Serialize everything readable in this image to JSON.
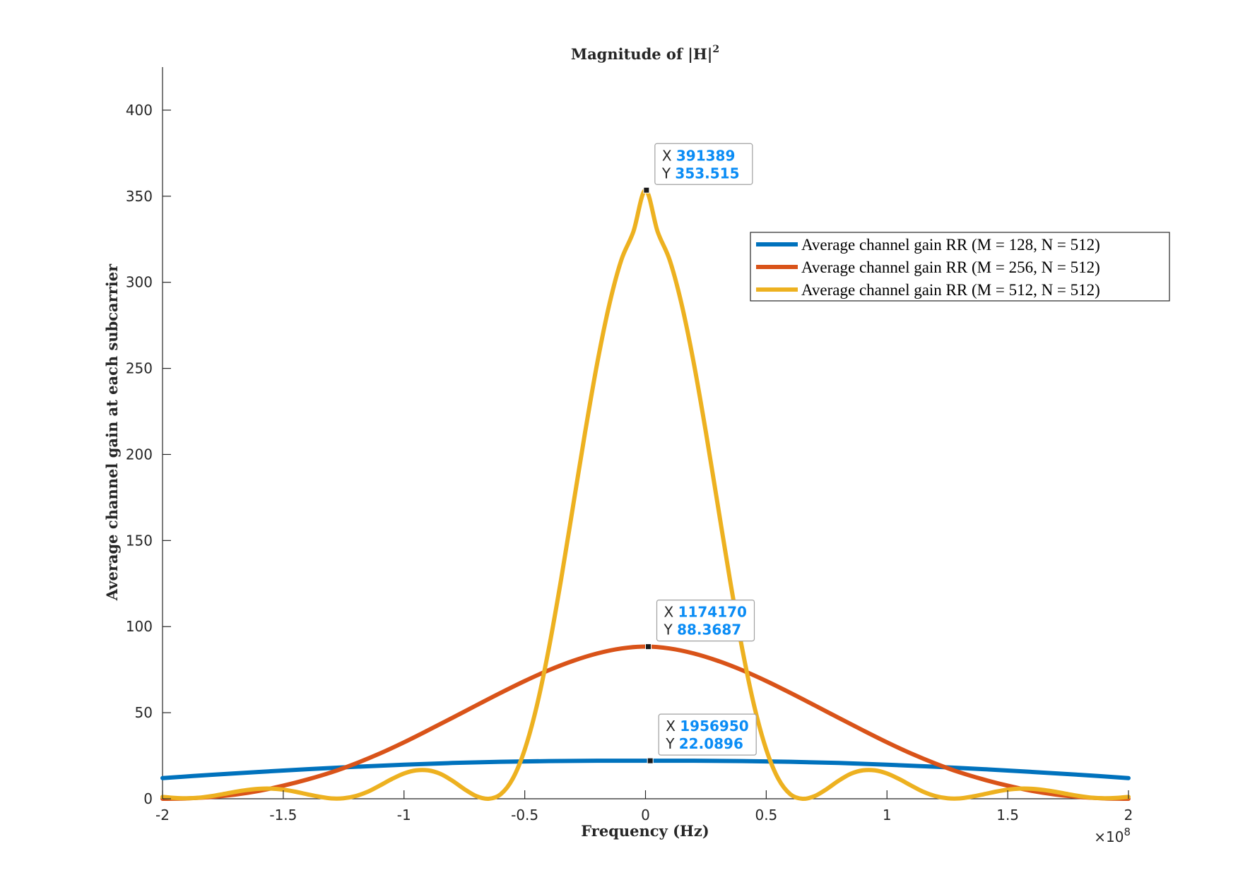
{
  "chart_data": {
    "type": "line",
    "title": "Magnitude of |H|",
    "title_superscript": "2",
    "xlabel": "Frequency (Hz)",
    "ylabel": "Average channel gain at each subcarrier",
    "x_exponent_base": "×10",
    "x_exponent_power": "8",
    "xlim": [
      -2,
      2
    ],
    "ylim": [
      0,
      425
    ],
    "x_scale": "1e8",
    "xticks": [
      -2,
      -1.5,
      -1,
      -0.5,
      0,
      0.5,
      1,
      1.5,
      2
    ],
    "xtick_labels": [
      "-2",
      "-1.5",
      "-1",
      "-0.5",
      "0",
      "0.5",
      "1",
      "1.5",
      "2"
    ],
    "yticks": [
      0,
      50,
      100,
      150,
      200,
      250,
      300,
      350,
      400
    ],
    "ytick_labels": [
      "0",
      "50",
      "100",
      "150",
      "200",
      "250",
      "300",
      "350",
      "400"
    ],
    "grid": false,
    "legend_position": "top-right",
    "series": [
      {
        "name": "Average channel gain RR (M = 128, N = 512)",
        "color": "#0072BD",
        "x": [
          -2.0,
          -1.8,
          -1.6,
          -1.4,
          -1.2,
          -1.0,
          -0.8,
          -0.6,
          -0.4,
          -0.2,
          0.0,
          0.2,
          0.4,
          0.6,
          0.8,
          1.0,
          1.2,
          1.4,
          1.6,
          1.8,
          2.0
        ],
        "y": [
          12.0,
          13.9,
          15.6,
          17.2,
          18.6,
          19.8,
          20.8,
          21.5,
          21.9,
          22.1,
          22.1,
          22.1,
          21.9,
          21.5,
          20.8,
          19.8,
          18.6,
          17.2,
          15.6,
          13.9,
          12.0
        ]
      },
      {
        "name": "Average channel gain RR (M = 256, N = 512)",
        "color": "#D95319",
        "x": [
          -2.0,
          -1.9,
          -1.8,
          -1.7,
          -1.6,
          -1.5,
          -1.4,
          -1.3,
          -1.2,
          -1.1,
          -1.0,
          -0.9,
          -0.8,
          -0.7,
          -0.6,
          -0.5,
          -0.4,
          -0.3,
          -0.2,
          -0.1,
          0.0,
          0.1,
          0.2,
          0.3,
          0.4,
          0.5,
          0.6,
          0.7,
          0.8,
          0.9,
          1.0,
          1.1,
          1.2,
          1.3,
          1.4,
          1.5,
          1.6,
          1.7,
          1.8,
          1.9,
          2.0
        ],
        "y": [
          0.0,
          0.2,
          1.0,
          2.4,
          4.6,
          7.6,
          11.2,
          15.4,
          20.5,
          26.3,
          32.8,
          39.8,
          47.0,
          54.3,
          61.5,
          68.4,
          74.7,
          80.1,
          84.4,
          87.3,
          88.4,
          87.3,
          84.4,
          80.1,
          74.7,
          68.4,
          61.5,
          54.3,
          47.0,
          39.8,
          32.8,
          26.3,
          20.5,
          15.4,
          11.2,
          7.6,
          4.6,
          2.4,
          1.0,
          0.2,
          0.0
        ]
      },
      {
        "name": "Average channel gain RR (M = 512, N = 512)",
        "color": "#EDB120",
        "x": [
          -2.0,
          -1.95,
          -1.9,
          -1.85,
          -1.8,
          -1.75,
          -1.7,
          -1.65,
          -1.6,
          -1.55,
          -1.5,
          -1.45,
          -1.4,
          -1.35,
          -1.3,
          -1.25,
          -1.2,
          -1.15,
          -1.1,
          -1.05,
          -1.0,
          -0.95,
          -0.9,
          -0.85,
          -0.8,
          -0.75,
          -0.7,
          -0.65,
          -0.6,
          -0.55,
          -0.5,
          -0.45,
          -0.4,
          -0.35,
          -0.3,
          -0.25,
          -0.2,
          -0.15,
          -0.1,
          -0.05,
          0.0,
          0.05,
          0.1,
          0.15,
          0.2,
          0.25,
          0.3,
          0.35,
          0.4,
          0.45,
          0.5,
          0.55,
          0.6,
          0.65,
          0.7,
          0.75,
          0.8,
          0.85,
          0.9,
          0.95,
          1.0,
          1.05,
          1.1,
          1.15,
          1.2,
          1.25,
          1.3,
          1.35,
          1.4,
          1.45,
          1.5,
          1.55,
          1.6,
          1.65,
          1.7,
          1.75,
          1.8,
          1.85,
          1.9,
          1.95,
          2.0
        ],
        "y": [
          1.1,
          0.5,
          0.3,
          0.6,
          1.5,
          2.7,
          4.0,
          5.1,
          5.8,
          5.9,
          5.3,
          4.1,
          2.6,
          1.2,
          0.2,
          0.3,
          1.6,
          4.1,
          7.7,
          11.5,
          14.7,
          16.5,
          16.5,
          14.5,
          10.5,
          5.6,
          1.5,
          0.0,
          2.6,
          11.6,
          28.6,
          54.0,
          87.5,
          127.0,
          170.0,
          213.0,
          253.0,
          287.0,
          313.0,
          329.5,
          353.5,
          329.5,
          313.0,
          287.0,
          253.0,
          213.0,
          170.0,
          127.0,
          87.5,
          54.0,
          28.6,
          11.6,
          2.6,
          0.0,
          1.5,
          5.6,
          10.5,
          14.5,
          16.5,
          16.5,
          14.7,
          11.5,
          7.7,
          4.1,
          1.6,
          0.3,
          0.2,
          1.2,
          2.6,
          4.1,
          5.3,
          5.9,
          5.8,
          5.1,
          4.0,
          2.7,
          1.5,
          0.6,
          0.3,
          0.5,
          1.1
        ]
      }
    ],
    "datatips": [
      {
        "series": 2,
        "x_raw": "391389",
        "y_raw": "353.515",
        "x": 0.0039,
        "y": 353.515
      },
      {
        "series": 1,
        "x_raw": "1174170",
        "y_raw": "88.3687",
        "x": 0.0117,
        "y": 88.3687
      },
      {
        "series": 0,
        "x_raw": "1956950",
        "y_raw": "22.0896",
        "x": 0.0196,
        "y": 22.0896
      }
    ],
    "datatip_x_label": "X",
    "datatip_y_label": "Y",
    "datatip_value_color": "#0A8CF5"
  }
}
